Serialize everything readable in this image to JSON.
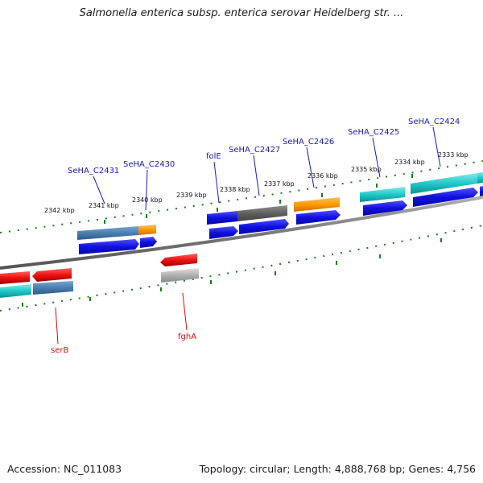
{
  "title": "Salmonella enterica subsp. enterica serovar Heidelberg str. ...",
  "footer": {
    "accession": "Accession: NC_011083",
    "topology": "Topology: circular; Length: 4,888,768 bp; Genes: 4,756"
  },
  "kbp_labels": [
    "2342 kbp",
    "2341 kbp",
    "2340 kbp",
    "2339 kbp",
    "2338 kbp",
    "2337 kbp",
    "2336 kbp",
    "2335 kbp",
    "2334 kbp",
    "2333 kbp"
  ],
  "gene_labels": {
    "SeHA_C2431": "SeHA_C2431",
    "SeHA_C2430": "SeHA_C2430",
    "folE": "folE",
    "SeHA_C2427": "SeHA_C2427",
    "SeHA_C2426": "SeHA_C2426",
    "SeHA_C2425": "SeHA_C2425",
    "SeHA_C2424": "SeHA_C2424",
    "serB": "serB",
    "fghA": "fghA"
  },
  "colors": {
    "forward_label": "#1a1ab8",
    "reverse_label": "#cc1111",
    "tick": "#1a7a1a",
    "backbone": "#808080",
    "cds_blue": "#1010e0",
    "steel": "#4a7fb0",
    "orange": "#ff9900",
    "cyan": "#20c8c8",
    "red": "#ee1111",
    "grey": "#606060",
    "light_grey": "#b0b0b0"
  }
}
